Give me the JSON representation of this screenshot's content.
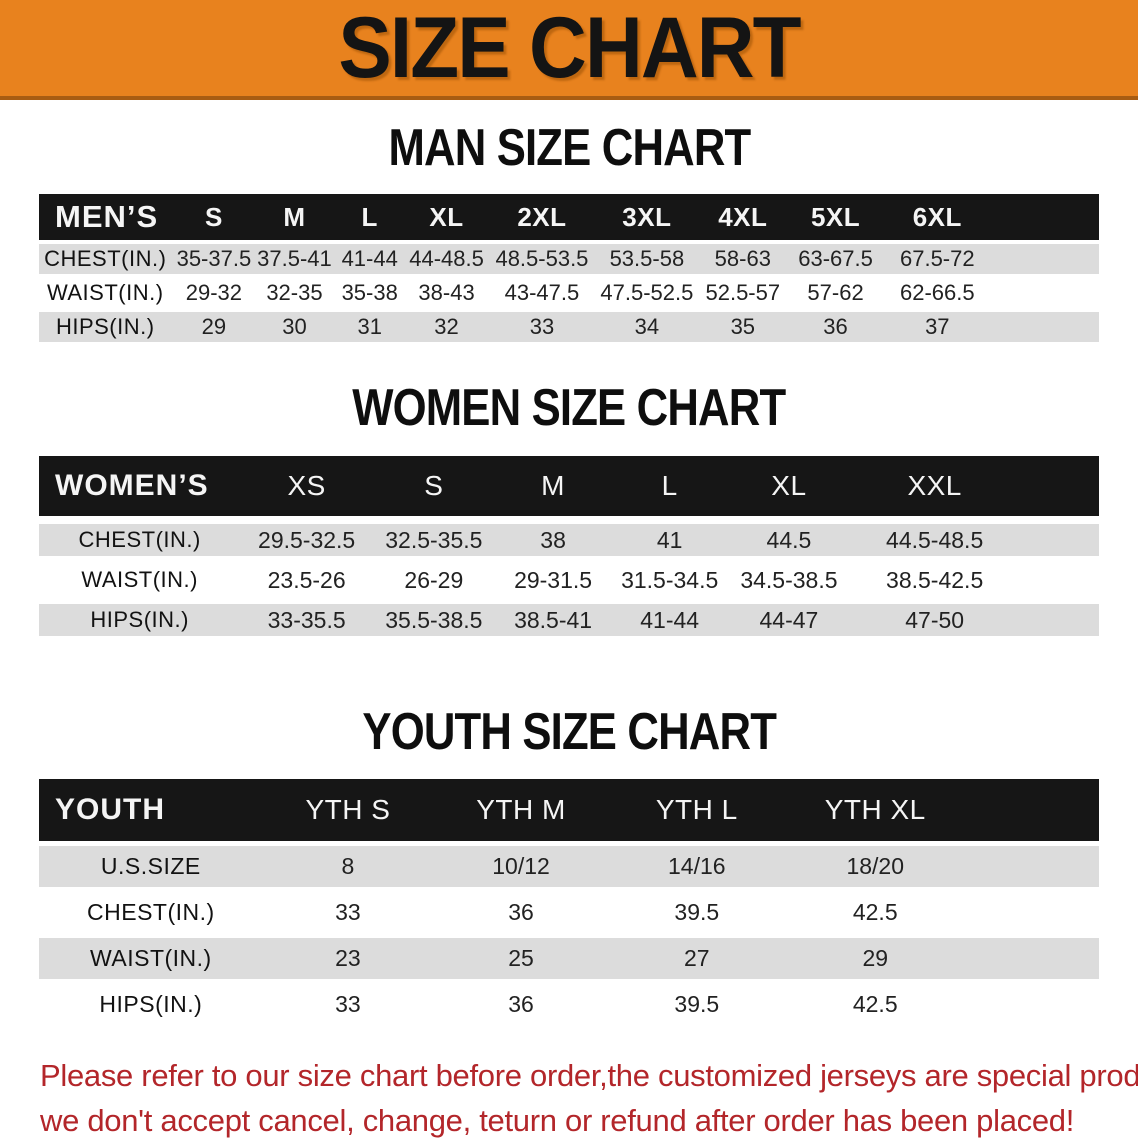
{
  "banner": {
    "title": "SIZE CHART"
  },
  "colors": {
    "banner_bg": "#E8821E",
    "banner_border": "#A85C12",
    "header_bar": "#161616",
    "row_shade": "#DCDCDC",
    "disclaimer": "#B3262A"
  },
  "sections": [
    {
      "heading": "MAN SIZE CHART",
      "table": {
        "corner_label": "MEN’S",
        "columns": [
          "S",
          "M",
          "L",
          "XL",
          "2XL",
          "3XL",
          "4XL",
          "5XL",
          "6XL"
        ],
        "rows": [
          {
            "label": "CHEST(IN.)",
            "values": [
              "35-37.5",
              "37.5-41",
              "41-44",
              "44-48.5",
              "48.5-53.5",
              "53.5-58",
              "58-63",
              "63-67.5",
              "67.5-72"
            ]
          },
          {
            "label": "WAIST(IN.)",
            "values": [
              "29-32",
              "32-35",
              "35-38",
              "38-43",
              "43-47.5",
              "47.5-52.5",
              "52.5-57",
              "57-62",
              "62-66.5"
            ]
          },
          {
            "label": "HIPS(IN.)",
            "values": [
              "29",
              "30",
              "31",
              "32",
              "33",
              "34",
              "35",
              "36",
              "37"
            ]
          }
        ]
      }
    },
    {
      "heading": "WOMEN SIZE CHART",
      "table": {
        "corner_label": "WOMEN’S",
        "columns": [
          "XS",
          "S",
          "M",
          "L",
          "XL",
          "XXL"
        ],
        "rows": [
          {
            "label": "CHEST(IN.)",
            "values": [
              "29.5-32.5",
              "32.5-35.5",
              "38",
              "41",
              "44.5",
              "44.5-48.5"
            ]
          },
          {
            "label": "WAIST(IN.)",
            "values": [
              "23.5-26",
              "26-29",
              "29-31.5",
              "31.5-34.5",
              "34.5-38.5",
              "38.5-42.5"
            ]
          },
          {
            "label": "HIPS(IN.)",
            "values": [
              "33-35.5",
              "35.5-38.5",
              "38.5-41",
              "41-44",
              "44-47",
              "47-50"
            ]
          }
        ]
      }
    },
    {
      "heading": "YOUTH SIZE CHART",
      "table": {
        "corner_label": "YOUTH",
        "columns": [
          "YTH S",
          "YTH M",
          "YTH L",
          "YTH XL"
        ],
        "rows": [
          {
            "label": "U.S.SIZE",
            "values": [
              "8",
              "10/12",
              "14/16",
              "18/20"
            ]
          },
          {
            "label": "CHEST(IN.)",
            "values": [
              "33",
              "36",
              "39.5",
              "42.5"
            ]
          },
          {
            "label": "WAIST(IN.)",
            "values": [
              "23",
              "25",
              "27",
              "29"
            ]
          },
          {
            "label": "HIPS(IN.)",
            "values": [
              "33",
              "36",
              "39.5",
              "42.5"
            ]
          }
        ]
      }
    }
  ],
  "disclaimer": {
    "lines": [
      "Please refer to our size chart before order,the customized jerseys are special products,",
      "we don't accept cancel, change, teturn or refund after order has been placed!"
    ]
  }
}
